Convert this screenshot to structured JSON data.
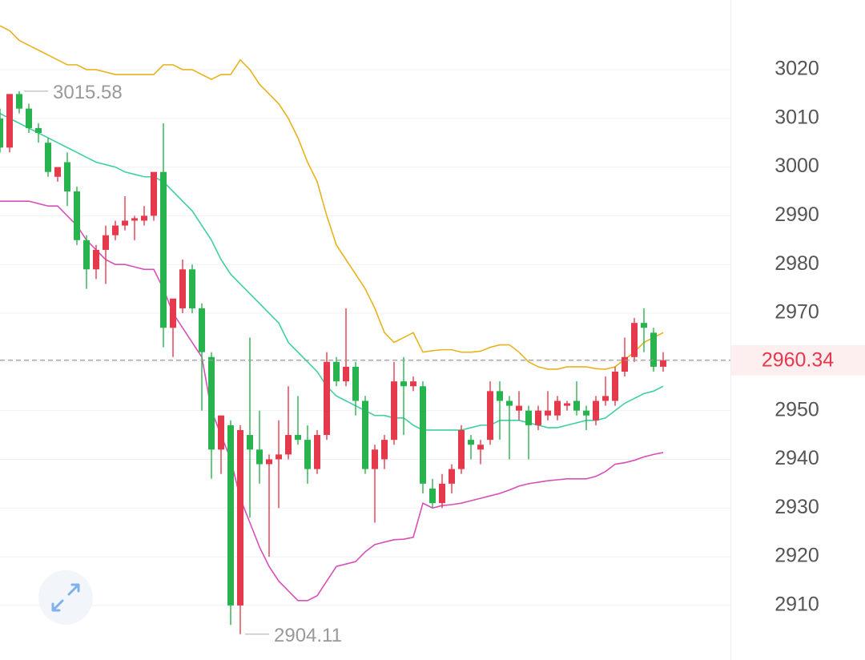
{
  "chart_data": {
    "type": "candlestick",
    "ylim": [
      2898.8,
      3034.3
    ],
    "yticks": [
      3020,
      3010,
      3000,
      2990,
      2980,
      2970,
      2960,
      2950,
      2940,
      2930,
      2920,
      2910
    ],
    "grid": true,
    "up_color": "#e5394c",
    "down_color": "#27b34e",
    "open": [
      3010,
      3004,
      3015,
      3012,
      3008,
      3005,
      2998,
      3001,
      2995,
      2985,
      2979,
      2983,
      2986,
      2988,
      2989,
      2989,
      2990,
      2999,
      2967,
      2971,
      2979,
      2971,
      2961,
      2942,
      2947,
      2910,
      2945,
      2942,
      2939,
      2940,
      2941,
      2945,
      2944,
      2938,
      2945,
      2960,
      2956,
      2959,
      2952,
      2938,
      2940,
      2944,
      2956,
      2955,
      2955,
      2934,
      2931,
      2935,
      2938,
      2944,
      2942,
      2944,
      2954,
      2952,
      2950,
      2950,
      2947,
      2949,
      2949,
      2951,
      2952,
      2950,
      2948,
      2952,
      2952,
      2958,
      2961,
      2968,
      2966,
      2959
    ],
    "high": [
      3012,
      3015,
      3015.58,
      3013,
      3009,
      3006,
      3000,
      3003,
      2996,
      2986,
      2984,
      2988,
      2989,
      2994,
      2990,
      2992,
      2999,
      3009,
      2973,
      2981,
      2980,
      2972,
      2962,
      2949,
      2948,
      2947,
      2965,
      2950,
      2941,
      2948,
      2955,
      2953,
      2947,
      2946,
      2962,
      2961,
      2971,
      2960,
      2953,
      2943,
      2945,
      2960,
      2961,
      2957,
      2956,
      2936,
      2937,
      2939,
      2947,
      2945,
      2944,
      2956,
      2956,
      2953,
      2954,
      2951,
      2951,
      2954,
      2953,
      2952,
      2956,
      2951,
      2953,
      2957,
      2959,
      2965,
      2969,
      2971,
      2967,
      2962
    ],
    "low": [
      3003,
      3003,
      3011,
      3007,
      3005,
      2998,
      2997,
      2992,
      2984,
      2975,
      2977,
      2976,
      2985,
      2987,
      2985,
      2988,
      2989,
      2963,
      2961,
      2970,
      2970,
      2950,
      2936,
      2937,
      2906,
      2904.11,
      2928,
      2935,
      2920,
      2930,
      2940,
      2943,
      2935,
      2937,
      2944,
      2955,
      2955,
      2949,
      2937,
      2927,
      2938,
      2943,
      2945,
      2954,
      2933,
      2930,
      2930,
      2933,
      2937,
      2940,
      2939,
      2943,
      2944,
      2940,
      2948,
      2940,
      2946,
      2948,
      2948,
      2950,
      2949,
      2946,
      2947,
      2951,
      2951,
      2957,
      2960,
      2962,
      2958,
      2958
    ],
    "close": [
      3004,
      3015,
      3012,
      3008,
      3007,
      2999,
      3000,
      2995,
      2985,
      2979,
      2983,
      2986,
      2988,
      2989,
      2989.5,
      2990,
      2999,
      2967,
      2973,
      2979,
      2971,
      2962,
      2942,
      2949,
      2910,
      2946,
      2942,
      2939,
      2940,
      2941,
      2945,
      2944,
      2938,
      2945,
      2960,
      2956,
      2959,
      2952,
      2938,
      2942,
      2944,
      2956,
      2955,
      2956,
      2935,
      2931,
      2935,
      2938,
      2946,
      2943,
      2943,
      2954,
      2952,
      2951,
      2951,
      2947,
      2950,
      2950,
      2952,
      2951.5,
      2950,
      2949,
      2952,
      2953,
      2958,
      2961,
      2968,
      2967,
      2959,
      2960.34
    ],
    "bands": [
      {
        "color": "#e8b21e",
        "values": [
          3029,
          3028,
          3026,
          3025,
          3024,
          3023,
          3022,
          3021,
          3021,
          3020,
          3020,
          3019.5,
          3019,
          3019,
          3019,
          3019,
          3019,
          3021,
          3021,
          3020,
          3020,
          3019,
          3018,
          3019,
          3019,
          3022,
          3020,
          3017,
          3015,
          3013,
          3010,
          3006,
          3001,
          2997,
          2990,
          2984,
          2981,
          2978,
          2975,
          2971,
          2966,
          2964,
          2965,
          2966,
          2962,
          2962.3,
          2962.5,
          2962.5,
          2962,
          2962,
          2962.2,
          2963,
          2963.5,
          2963.5,
          2962,
          2960,
          2959,
          2958.5,
          2958.5,
          2959,
          2959,
          2959,
          2958.6,
          2958.5,
          2959,
          2960.5,
          2962,
          2964,
          2965,
          2966
        ]
      },
      {
        "color": "#3fcfa3",
        "values": [
          3011,
          3010,
          3009,
          3008,
          3007,
          3006,
          3005,
          3004,
          3003,
          3002,
          3001,
          3000.5,
          3000,
          2999,
          2998.5,
          2998,
          2998,
          2997,
          2995,
          2993,
          2991,
          2988,
          2985,
          2981,
          2978,
          2976,
          2974,
          2972,
          2970,
          2968,
          2964,
          2962,
          2960,
          2958,
          2955,
          2953,
          2952,
          2951,
          2950,
          2949,
          2949,
          2948.5,
          2948.5,
          2947,
          2946,
          2946,
          2946,
          2946,
          2946,
          2946.5,
          2947,
          2947,
          2948,
          2948,
          2948,
          2947.5,
          2947,
          2946.5,
          2946.5,
          2947,
          2947.5,
          2948,
          2948,
          2948.5,
          2950,
          2951.5,
          2952.5,
          2953.5,
          2954,
          2955
        ]
      },
      {
        "color": "#d84fb9",
        "values": [
          2993,
          2993,
          2993,
          2993,
          2992.5,
          2992,
          2992,
          2990,
          2988,
          2985,
          2983,
          2981,
          2980,
          2980,
          2979.5,
          2979,
          2979,
          2975,
          2970,
          2967,
          2964,
          2961,
          2950,
          2945,
          2940,
          2932,
          2927,
          2922,
          2918,
          2915,
          2913,
          2911,
          2911,
          2912,
          2915,
          2918,
          2918.5,
          2919,
          2921,
          2922.5,
          2923,
          2923.5,
          2923.6,
          2924,
          2931,
          2930,
          2930.5,
          2930.7,
          2931,
          2931.5,
          2932,
          2932.5,
          2933,
          2933.7,
          2934.5,
          2935,
          2935.3,
          2935.6,
          2935.8,
          2936,
          2936,
          2936,
          2936.5,
          2937.5,
          2939,
          2939.3,
          2939.8,
          2940.5,
          2941,
          2941.4
        ]
      }
    ]
  }
}
